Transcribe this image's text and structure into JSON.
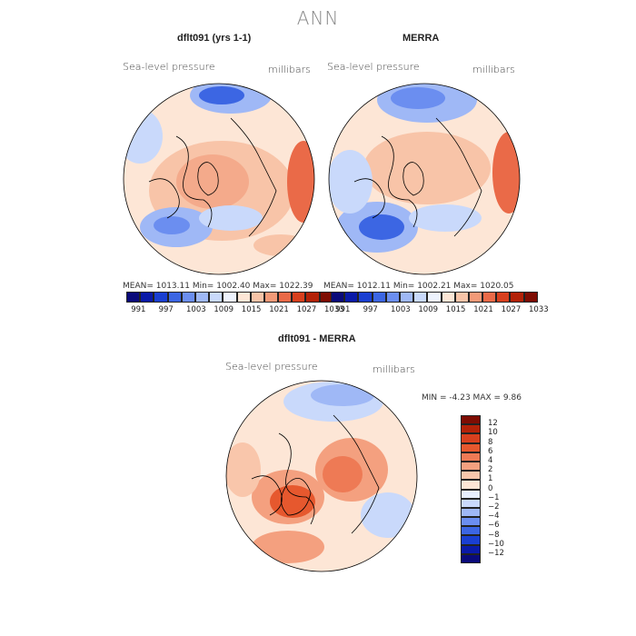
{
  "main_title": "ANN",
  "panels": [
    {
      "title": "dflt091 (yrs 1-1)",
      "variable": "Sea-level pressure",
      "units": "millibars",
      "stats": {
        "mean": "1013.11",
        "min": "1002.40",
        "max": "1022.39",
        "text": "MEAN= 1013.11   Min= 1002.40   Max= 1022.39"
      }
    },
    {
      "title": "MERRA",
      "variable": "Sea-level pressure",
      "units": "millibars",
      "stats": {
        "mean": "1012.11",
        "min": "1002.21",
        "max": "1020.05",
        "text": "MEAN= 1012.11   Min= 1002.21   Max= 1020.05"
      }
    },
    {
      "title": "dflt091 - MERRA",
      "variable": "Sea-level pressure",
      "units": "millibars",
      "stats": {
        "min": "-4.23",
        "max": "9.86",
        "text": "MIN =   -4.23  MAX =    9.86"
      }
    }
  ],
  "colorbar_top": {
    "colors": [
      "#0a0a7a",
      "#0a1aa8",
      "#1a3fd1",
      "#3c66e3",
      "#6b8ef0",
      "#9fb8f6",
      "#c9d9fb",
      "#eef3fe",
      "#fde6d6",
      "#f8c4a8",
      "#f29a78",
      "#ea6a48",
      "#d8401e",
      "#b32208",
      "#7e0d03"
    ],
    "labels": [
      "991",
      "997",
      "1003",
      "1009",
      "1015",
      "1021",
      "1027",
      "1033"
    ]
  },
  "colorbar_diff": {
    "colors": [
      "#7e0d03",
      "#b32208",
      "#d8401e",
      "#e6582e",
      "#ee7a55",
      "#f4a07f",
      "#f9c6ab",
      "#fde6d6",
      "#e7eefe",
      "#c9d9fb",
      "#9fb8f6",
      "#6b8ef0",
      "#3c66e3",
      "#1a3fd1",
      "#0a1aa8",
      "#0a0a7a"
    ],
    "labels": [
      "12",
      "10",
      "8",
      "6",
      "4",
      "2",
      "1",
      "0",
      "−1",
      "−2",
      "−4",
      "−6",
      "−8",
      "−10",
      "−12"
    ]
  }
}
